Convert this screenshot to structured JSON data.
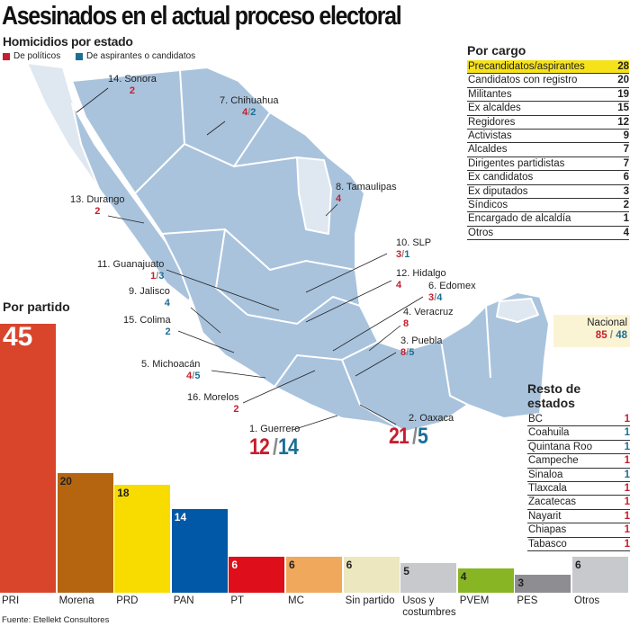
{
  "title": "Asesinados en el actual proceso electoral",
  "subtitle": "Homicidios por estado",
  "legend": {
    "politicos": "De políticos",
    "aspirantes": "De aspirantes o candidatos",
    "colors": {
      "politicos": "#c61e2e",
      "aspirantes": "#1b6f95"
    }
  },
  "states": [
    {
      "name": "14. Sonora",
      "a": "2",
      "b": null
    },
    {
      "name": "7. Chihuahua",
      "a": "4",
      "b": "2"
    },
    {
      "name": "8. Tamaulipas",
      "a": "4",
      "b": null
    },
    {
      "name": "13. Durango",
      "a": "2",
      "b": null
    },
    {
      "name": "10. SLP",
      "a": "3",
      "b": "1"
    },
    {
      "name": "11. Guanajuato",
      "a": "1",
      "b": "3"
    },
    {
      "name": "12. Hidalgo",
      "a": "4",
      "b": null
    },
    {
      "name": "9. Jalisco",
      "a": null,
      "b": "4"
    },
    {
      "name": "6. Edomex",
      "a": "3",
      "b": "4"
    },
    {
      "name": "4. Veracruz",
      "a": "8",
      "b": null
    },
    {
      "name": "15. Colima",
      "a": null,
      "b": "2"
    },
    {
      "name": "3. Puebla",
      "a": "8",
      "b": "5"
    },
    {
      "name": "5. Michoacán",
      "a": "4",
      "b": "5"
    },
    {
      "name": "16. Morelos",
      "a": "2",
      "b": null
    },
    {
      "name": "1. Guerrero",
      "a": "12",
      "b": "14"
    },
    {
      "name": "2. Oaxaca",
      "a": "21",
      "b": "5"
    }
  ],
  "nacional": {
    "label": "Nacional",
    "a": "85",
    "b": "48"
  },
  "cargo": {
    "heading": "Por cargo",
    "rows": [
      {
        "label": "Precandidatos/aspirantes",
        "value": "28"
      },
      {
        "label": "Candidatos con registro",
        "value": "20"
      },
      {
        "label": "Militantes",
        "value": "19"
      },
      {
        "label": "Ex alcaldes",
        "value": "15"
      },
      {
        "label": "Regidores",
        "value": "12"
      },
      {
        "label": "Activistas",
        "value": "9"
      },
      {
        "label": "Alcaldes",
        "value": "7"
      },
      {
        "label": "Dirigentes partidistas",
        "value": "7"
      },
      {
        "label": "Ex candidatos",
        "value": "6"
      },
      {
        "label": "Ex diputados",
        "value": "3"
      },
      {
        "label": "Síndicos",
        "value": "2"
      },
      {
        "label": "Encargado de alcaldía",
        "value": "1"
      },
      {
        "label": "Otros",
        "value": "4"
      }
    ]
  },
  "resto": {
    "heading": "Resto de estados",
    "rows": [
      {
        "label": "BC",
        "value": "1",
        "type": "politicos"
      },
      {
        "label": "Coahuila",
        "value": "1",
        "type": "aspirantes"
      },
      {
        "label": "Quintana Roo",
        "value": "1",
        "type": "aspirantes"
      },
      {
        "label": "Campeche",
        "value": "1",
        "type": "politicos"
      },
      {
        "label": "Sinaloa",
        "value": "1",
        "type": "aspirantes"
      },
      {
        "label": "Tlaxcala",
        "value": "1",
        "type": "politicos"
      },
      {
        "label": "Zacatecas",
        "value": "1",
        "type": "politicos"
      },
      {
        "label": "Nayarit",
        "value": "1",
        "type": "politicos"
      },
      {
        "label": "Chiapas",
        "value": "1",
        "type": "politicos"
      },
      {
        "label": "Tabasco",
        "value": "1",
        "type": "politicos"
      }
    ]
  },
  "chart_data": {
    "type": "bar",
    "title": "Por partido",
    "xlabel": "",
    "ylabel": "",
    "ylim": [
      0,
      45
    ],
    "categories": [
      "PRI",
      "Morena",
      "PRD",
      "PAN",
      "PT",
      "MC",
      "Sin partido",
      "Usos y costumbres",
      "PVEM",
      "PES",
      "Otros"
    ],
    "values": [
      45,
      20,
      18,
      14,
      6,
      6,
      6,
      5,
      4,
      3,
      6
    ],
    "colors": [
      "#d8452b",
      "#b5650f",
      "#f8dc00",
      "#0058a6",
      "#de0f1a",
      "#f0a85c",
      "#ede7c0",
      "#c8c9cc",
      "#88b524",
      "#8e8d92",
      "#c8c9cc"
    ],
    "value_colors": [
      "#ffffff",
      "#222222",
      "#222222",
      "#ffffff",
      "#ffffff",
      "#222222",
      "#222222",
      "#222222",
      "#222222",
      "#222222",
      "#222222"
    ],
    "grid": false
  },
  "source": "Fuente: Etellekt Consultores"
}
